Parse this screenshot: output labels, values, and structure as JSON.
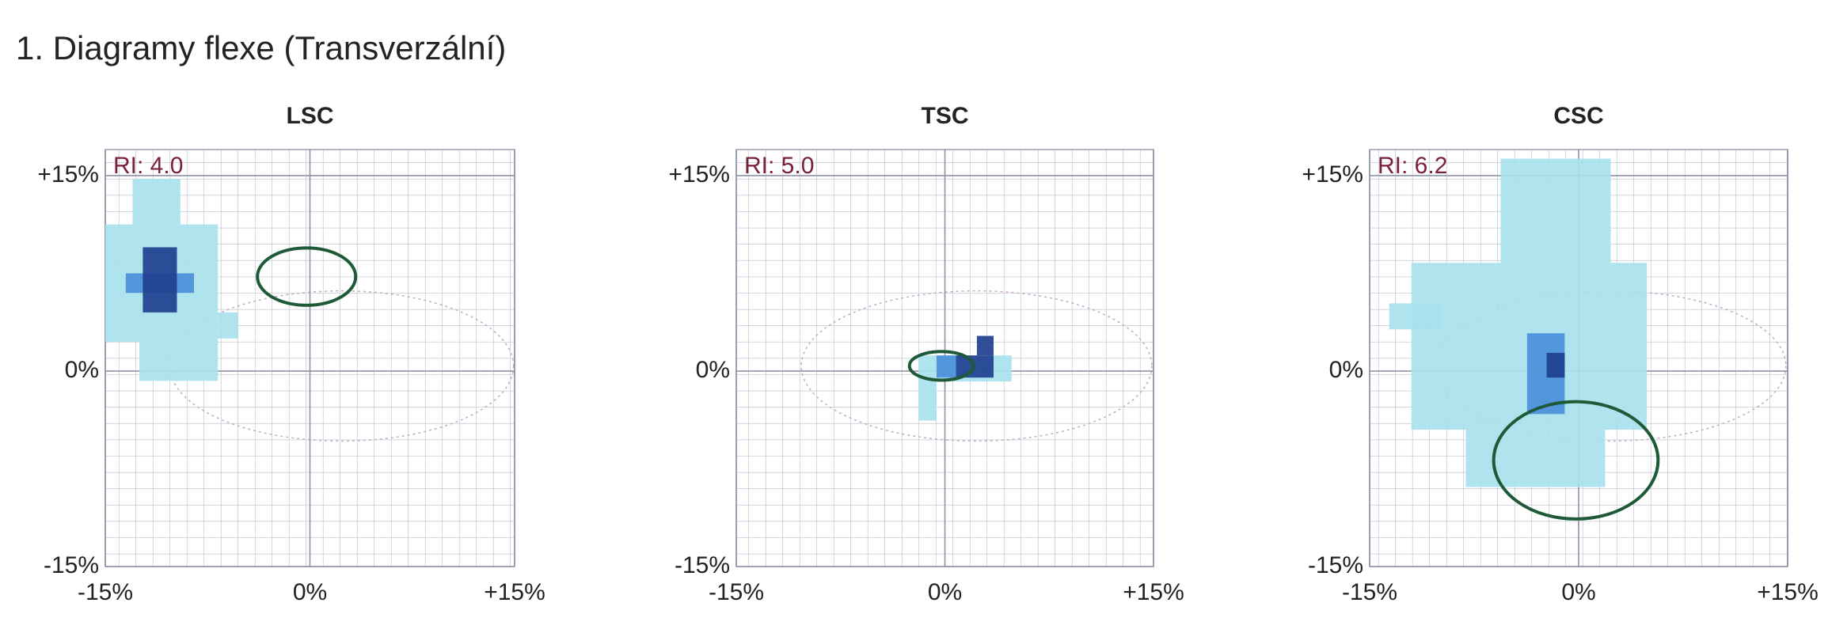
{
  "title": "1. Diagramy flexe (Transverzální)",
  "chart_data": [
    {
      "type": "heatmap",
      "title": "LSC",
      "annotation": "RI: 4.0",
      "xlim": [
        -15,
        15
      ],
      "ylim": [
        -15,
        17
      ],
      "xticks": [
        {
          "value": -15,
          "label": "-15%"
        },
        {
          "value": 0,
          "label": "0%"
        },
        {
          "value": 15,
          "label": "+15%"
        }
      ],
      "yticks": [
        {
          "value": -15,
          "label": "-15%"
        },
        {
          "value": 0,
          "label": "0%"
        },
        {
          "value": 15,
          "label": "+15%"
        }
      ],
      "regions": [
        {
          "x": [
            -15,
            -6.75
          ],
          "y": [
            2.25,
            11.25
          ],
          "color": "#a8e1eb"
        },
        {
          "x": [
            -13,
            -9.5
          ],
          "y": [
            11.25,
            14.75
          ],
          "color": "#a8e1eb"
        },
        {
          "x": [
            -12.5,
            -6.75
          ],
          "y": [
            -0.75,
            2.25
          ],
          "color": "#a8e1eb"
        },
        {
          "x": [
            -6.75,
            -5.25
          ],
          "y": [
            2.5,
            4.5
          ],
          "color": "#a8e1eb"
        },
        {
          "x": [
            -13.5,
            -8.5
          ],
          "y": [
            6,
            7.5
          ],
          "color": "#4b8fd9"
        },
        {
          "x": [
            -12.25,
            -9.75
          ],
          "y": [
            4.5,
            9.5
          ],
          "color": "#1f3f8f"
        }
      ],
      "ellipse": {
        "cx": -0.25,
        "cy": 7.25,
        "rx": 3.6,
        "ry": 2.2,
        "color": "#1e5a38"
      }
    },
    {
      "type": "heatmap",
      "title": "TSC",
      "annotation": "RI: 5.0",
      "xlim": [
        -15,
        15
      ],
      "ylim": [
        -15,
        17
      ],
      "xticks": [
        {
          "value": -15,
          "label": "-15%"
        },
        {
          "value": 0,
          "label": "0%"
        },
        {
          "value": 15,
          "label": "+15%"
        }
      ],
      "yticks": [
        {
          "value": -15,
          "label": "-15%"
        },
        {
          "value": 0,
          "label": "0%"
        },
        {
          "value": 15,
          "label": "+15%"
        }
      ],
      "regions": [
        {
          "x": [
            -1.9,
            4.8
          ],
          "y": [
            -0.8,
            1.2
          ],
          "color": "#a8e1eb"
        },
        {
          "x": [
            -1.9,
            -0.6
          ],
          "y": [
            -3.8,
            -0.8
          ],
          "color": "#a8e1eb"
        },
        {
          "x": [
            -0.6,
            0.8
          ],
          "y": [
            -0.5,
            1.2
          ],
          "color": "#4b8fd9"
        },
        {
          "x": [
            0.8,
            3.5
          ],
          "y": [
            -0.5,
            1.2
          ],
          "color": "#1f3f8f"
        },
        {
          "x": [
            2.3,
            3.5
          ],
          "y": [
            1.2,
            2.7
          ],
          "color": "#1f3f8f"
        }
      ],
      "ellipse": {
        "cx": -0.25,
        "cy": 0.4,
        "rx": 2.3,
        "ry": 1.1,
        "color": "#1e5a38"
      }
    },
    {
      "type": "heatmap",
      "title": "CSC",
      "annotation": "RI: 6.2",
      "xlim": [
        -15,
        15
      ],
      "ylim": [
        -15,
        17
      ],
      "xticks": [
        {
          "value": -15,
          "label": "-15%"
        },
        {
          "value": 0,
          "label": "0%"
        },
        {
          "value": 15,
          "label": "+15%"
        }
      ],
      "yticks": [
        {
          "value": -15,
          "label": "-15%"
        },
        {
          "value": 0,
          "label": "0%"
        },
        {
          "value": 15,
          "label": "+15%"
        }
      ],
      "regions": [
        {
          "x": [
            -12,
            4.9
          ],
          "y": [
            -4.5,
            8.3
          ],
          "color": "#a8e1eb"
        },
        {
          "x": [
            -5.6,
            2.3
          ],
          "y": [
            8.3,
            16.3
          ],
          "color": "#a8e1eb"
        },
        {
          "x": [
            -13.6,
            -9.8
          ],
          "y": [
            3.2,
            5.2
          ],
          "color": "#a8e1eb"
        },
        {
          "x": [
            -8.1,
            1.9
          ],
          "y": [
            -8.9,
            -4.5
          ],
          "color": "#a8e1eb"
        },
        {
          "x": [
            -3.7,
            -1
          ],
          "y": [
            -3.3,
            2.9
          ],
          "color": "#4b8fd9"
        },
        {
          "x": [
            -2.3,
            -1
          ],
          "y": [
            -0.5,
            1.4
          ],
          "color": "#1f3f8f"
        }
      ],
      "ellipse": {
        "cx": -0.2,
        "cy": -6.85,
        "rx": 5.9,
        "ry": 4.5,
        "color": "#1e5a38"
      }
    }
  ]
}
